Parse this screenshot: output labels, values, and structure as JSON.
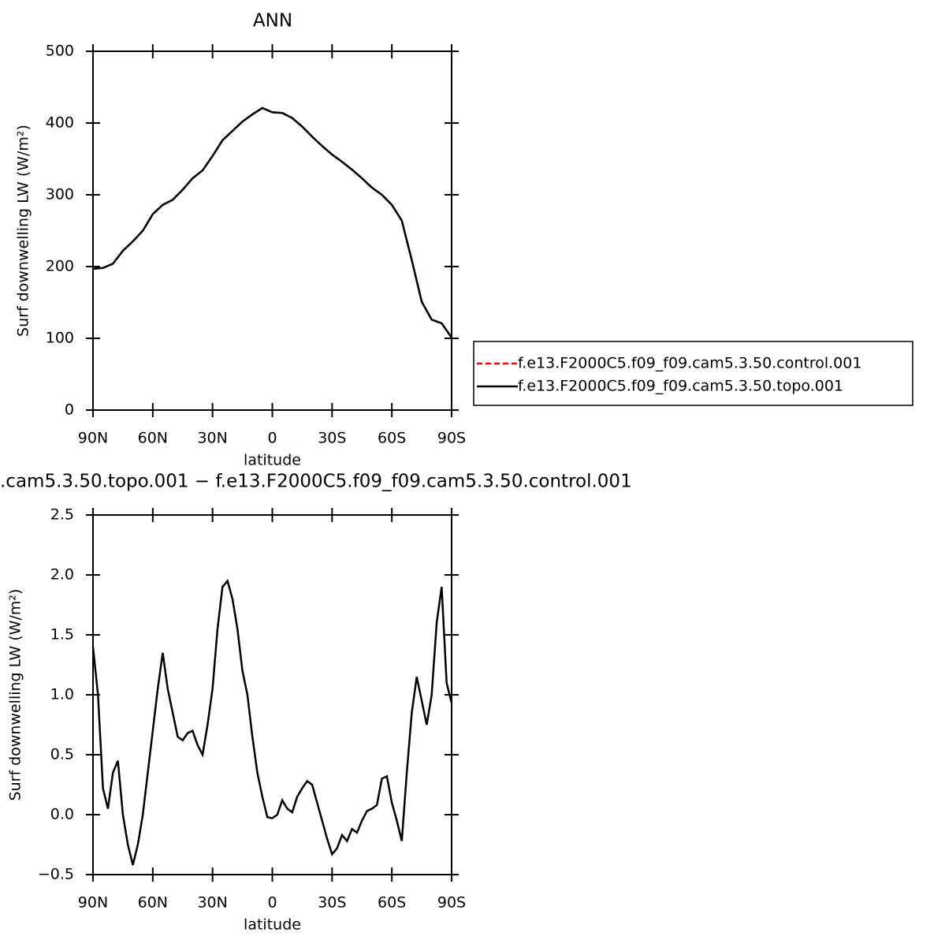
{
  "chart_data": [
    {
      "type": "line",
      "title": "ANN",
      "xlabel": "latitude",
      "ylabel": "Surf downwelling LW (W/m²)",
      "xlim": [
        90,
        -90
      ],
      "xticks": [
        {
          "value": 90,
          "label": "90N"
        },
        {
          "value": 60,
          "label": "60N"
        },
        {
          "value": 30,
          "label": "30N"
        },
        0,
        {
          "value": -30,
          "label": "30S"
        },
        {
          "value": -60,
          "label": "60S"
        },
        {
          "value": -90,
          "label": "90S"
        }
      ],
      "ylim": [
        0,
        500
      ],
      "yticks": [
        0,
        100,
        200,
        300,
        400,
        500
      ],
      "legend": "right",
      "x": [
        90,
        85,
        80,
        75,
        70,
        65,
        60,
        55,
        50,
        45,
        40,
        35,
        30,
        25,
        20,
        15,
        10,
        5,
        0,
        -5,
        -10,
        -15,
        -20,
        -25,
        -30,
        -35,
        -40,
        -45,
        -50,
        -55,
        -60,
        -65,
        -70,
        -75,
        -80,
        -85,
        -90
      ],
      "series": [
        {
          "name": "f.e13.F2000C5.f09_f09.cam5.3.50.control.001",
          "color": "#ff0000",
          "style": "dashed",
          "values": [
            197,
            198,
            204,
            222,
            235,
            250,
            273,
            286,
            293,
            307,
            323,
            334,
            354,
            376,
            389,
            402,
            412,
            421,
            415,
            414,
            407,
            395,
            381,
            368,
            356,
            346,
            335,
            323,
            310,
            300,
            286,
            264,
            209,
            151,
            126,
            121,
            101
          ]
        },
        {
          "name": "f.e13.F2000C5.f09_f09.cam5.3.50.topo.001",
          "color": "#000000",
          "style": "solid",
          "values": [
            197,
            198,
            204,
            222,
            235,
            250,
            273,
            286,
            293,
            307,
            323,
            334,
            354,
            376,
            389,
            402,
            412,
            421,
            415,
            414,
            407,
            395,
            381,
            368,
            356,
            346,
            335,
            323,
            310,
            300,
            286,
            264,
            209,
            151,
            126,
            121,
            101
          ]
        }
      ]
    },
    {
      "type": "line",
      "title": ".cam5.3.50.topo.001 − f.e13.F2000C5.f09_f09.cam5.3.50.control.001",
      "xlabel": "latitude",
      "ylabel": "Surf downwelling LW (W/m²)",
      "xlim": [
        90,
        -90
      ],
      "xticks": [
        {
          "value": 90,
          "label": "90N"
        },
        {
          "value": 60,
          "label": "60N"
        },
        {
          "value": 30,
          "label": "30N"
        },
        0,
        {
          "value": -30,
          "label": "30S"
        },
        {
          "value": -60,
          "label": "60S"
        },
        {
          "value": -90,
          "label": "90S"
        }
      ],
      "ylim": [
        -0.5,
        2.5
      ],
      "yticks": [
        {
          "value": -0.5,
          "label": "−0.5"
        },
        {
          "value": 0,
          "label": "0.0"
        },
        0.5,
        {
          "value": 1,
          "label": "1.0"
        },
        1.5,
        {
          "value": 2,
          "label": "2.0"
        },
        2.5
      ],
      "x": [
        90,
        87.5,
        85,
        82.5,
        80,
        77.5,
        75,
        72.5,
        70,
        67.5,
        65,
        62.5,
        60,
        57.5,
        55,
        52.5,
        50,
        47.5,
        45,
        42.5,
        40,
        37.5,
        35,
        32.5,
        30,
        27.5,
        25,
        22.5,
        20,
        17.5,
        15,
        12.5,
        10,
        7.5,
        5,
        2.5,
        0,
        -2.5,
        -5,
        -7.5,
        -10,
        -12.5,
        -15,
        -17.5,
        -20,
        -22.5,
        -25,
        -27.5,
        -30,
        -32.5,
        -35,
        -37.5,
        -40,
        -42.5,
        -45,
        -47.5,
        -50,
        -52.5,
        -55,
        -57.5,
        -60,
        -62.5,
        -65,
        -67.5,
        -70,
        -72.5,
        -75,
        -77.5,
        -80,
        -82.5,
        -85,
        -87.5,
        -90
      ],
      "series": [
        {
          "color": "#000000",
          "style": "solid",
          "values": [
            1.4,
            1.0,
            0.22,
            0.05,
            0.35,
            0.45,
            0.0,
            -0.25,
            -0.42,
            -0.25,
            0.0,
            0.35,
            0.7,
            1.05,
            1.35,
            1.05,
            0.85,
            0.65,
            0.62,
            0.68,
            0.7,
            0.58,
            0.5,
            0.75,
            1.05,
            1.55,
            1.9,
            1.95,
            1.8,
            1.55,
            1.2,
            1.0,
            0.65,
            0.35,
            0.15,
            -0.02,
            -0.03,
            0.0,
            0.12,
            0.05,
            0.02,
            0.15,
            0.22,
            0.28,
            0.25,
            0.1,
            -0.05,
            -0.2,
            -0.33,
            -0.28,
            -0.17,
            -0.22,
            -0.12,
            -0.15,
            -0.05,
            0.03,
            0.05,
            0.08,
            0.3,
            0.32,
            0.1,
            -0.05,
            -0.22,
            0.35,
            0.85,
            1.15,
            0.95,
            0.75,
            1.0,
            1.6,
            1.9,
            1.1,
            0.93
          ]
        }
      ]
    }
  ]
}
